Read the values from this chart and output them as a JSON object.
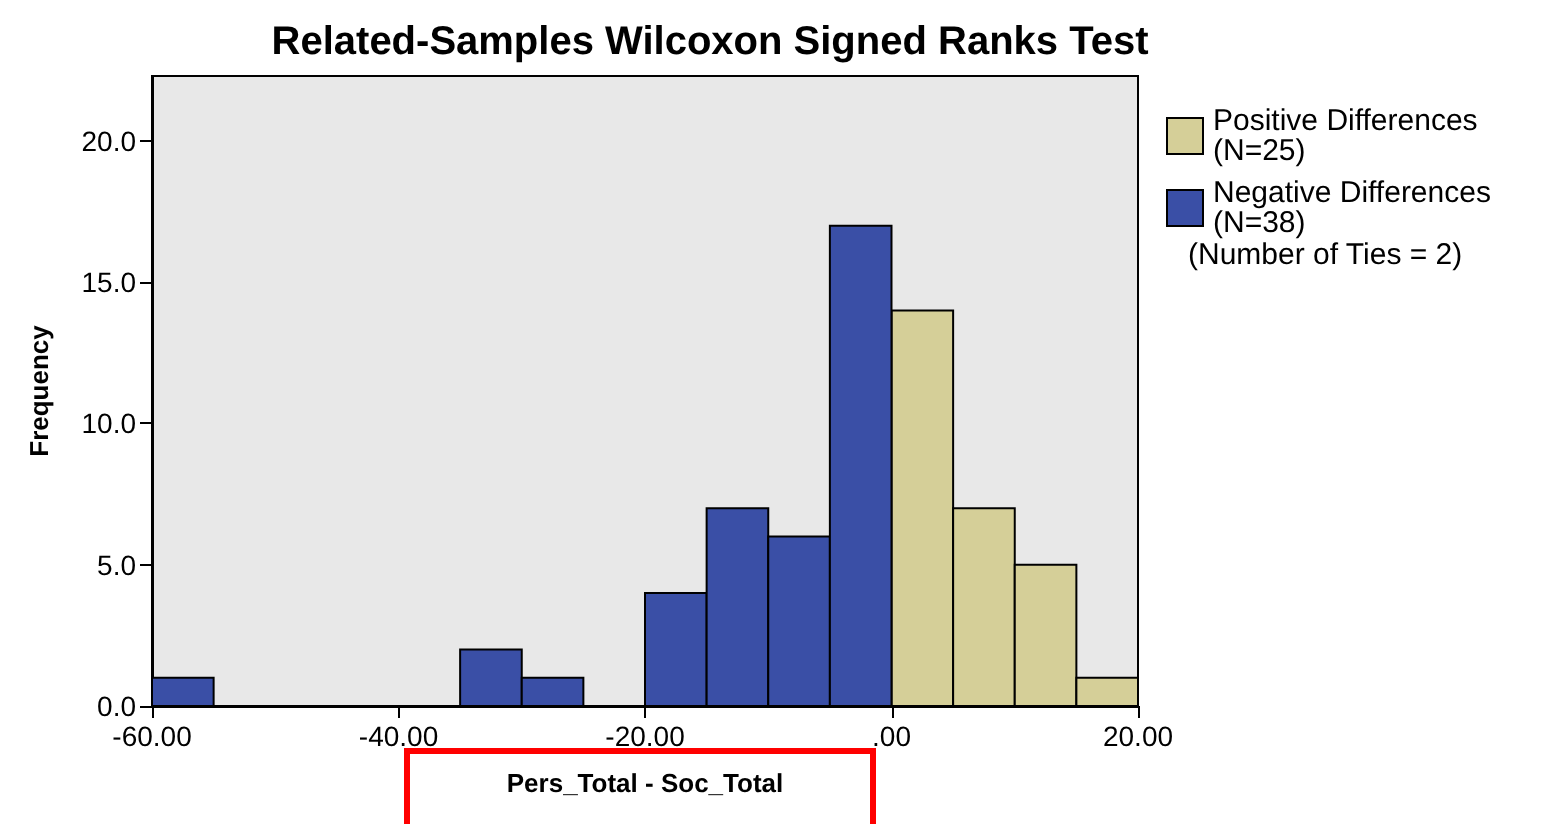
{
  "chart_data": {
    "type": "histogram",
    "title": "Related-Samples Wilcoxon Signed Ranks Test",
    "xlabel": "Pers_Total - Soc_Total",
    "ylabel": "Frequency",
    "bins": [
      -60,
      -55,
      -50,
      -45,
      -40,
      -35,
      -30,
      -25,
      -20,
      -15,
      -10,
      -5,
      0,
      5,
      10,
      15,
      20
    ],
    "series": [
      {
        "name": "Positive Differences (N=25)",
        "color": "#d5cf98",
        "values": [
          null,
          null,
          null,
          null,
          null,
          null,
          null,
          null,
          null,
          null,
          null,
          null,
          14,
          7,
          5,
          1
        ]
      },
      {
        "name": "Negative Differences (N=38)",
        "color": "#3a4fa6",
        "values": [
          1,
          0,
          0,
          0,
          0,
          2,
          1,
          0,
          4,
          7,
          6,
          17,
          null,
          null,
          null,
          null
        ]
      }
    ],
    "annotations": [
      "(Number of Ties = 2)"
    ],
    "xlim": [
      -60,
      20
    ],
    "ylim": [
      0,
      22.3
    ],
    "xticks": [
      {
        "value": -60,
        "label": "-60.00"
      },
      {
        "value": -40,
        "label": "-40.00"
      },
      {
        "value": -20,
        "label": "-20.00"
      },
      {
        "value": 0,
        "label": ".00"
      },
      {
        "value": 20,
        "label": "20.00"
      }
    ],
    "yticks": [
      {
        "value": 0,
        "label": "0.0"
      },
      {
        "value": 5,
        "label": "5.0"
      },
      {
        "value": 10,
        "label": "10.0"
      },
      {
        "value": 15,
        "label": "15.0"
      },
      {
        "value": 20,
        "label": "20.0"
      }
    ],
    "grid": false,
    "legend": "top right"
  }
}
